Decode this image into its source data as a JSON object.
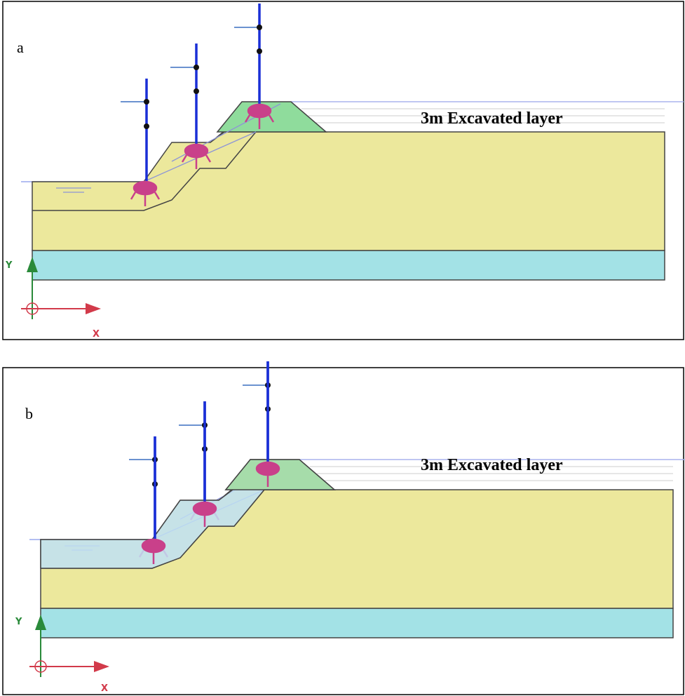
{
  "panels": [
    {
      "label": "a",
      "annotation": "3m Excavated layer",
      "y_axis": "Y",
      "x_axis": "X"
    },
    {
      "label": "b",
      "annotation": "3m Excavated layer",
      "y_axis": "Y",
      "x_axis": "X"
    }
  ]
}
